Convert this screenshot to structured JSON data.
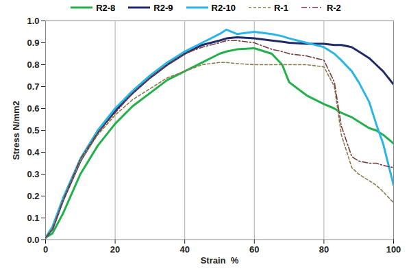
{
  "chart_data": {
    "type": "line",
    "x_label": "Strain  %",
    "y_label": "Stress N/mm2",
    "xlim": [
      0,
      100
    ],
    "xticks": [
      0,
      20,
      40,
      60,
      80,
      100
    ],
    "ylim": [
      0,
      1
    ],
    "yticks": [
      {
        "value": 0,
        "label": "0.0"
      },
      0.1,
      0.2,
      0.3,
      0.4,
      0.5,
      0.6,
      0.7,
      0.8,
      0.9,
      {
        "value": 1,
        "label": "1.0"
      }
    ],
    "grid": "x",
    "legend": "top",
    "x": [
      0,
      2,
      5,
      10,
      15,
      20,
      25,
      30,
      35,
      40,
      45,
      50,
      52,
      55,
      60,
      65,
      68,
      70,
      75,
      80,
      83,
      85,
      88,
      90,
      93,
      95,
      97,
      100
    ],
    "series": [
      {
        "name": "R2-8",
        "color": "#22b04b",
        "line_style": "solid",
        "values": [
          0.01,
          0.03,
          0.12,
          0.3,
          0.43,
          0.53,
          0.61,
          0.67,
          0.73,
          0.77,
          0.81,
          0.85,
          0.86,
          0.87,
          0.875,
          0.85,
          0.8,
          0.72,
          0.66,
          0.62,
          0.6,
          0.58,
          0.56,
          0.54,
          0.51,
          0.5,
          0.48,
          0.44
        ]
      },
      {
        "name": "R2-9",
        "color": "#1f2a6b",
        "line_style": "solid",
        "values": [
          0.01,
          0.05,
          0.18,
          0.36,
          0.49,
          0.59,
          0.67,
          0.74,
          0.8,
          0.85,
          0.89,
          0.91,
          0.92,
          0.925,
          0.92,
          0.91,
          0.905,
          0.9,
          0.895,
          0.895,
          0.89,
          0.89,
          0.88,
          0.86,
          0.83,
          0.8,
          0.77,
          0.71
        ]
      },
      {
        "name": "R2-10",
        "color": "#29b5e8",
        "line_style": "solid",
        "values": [
          0.01,
          0.06,
          0.19,
          0.37,
          0.5,
          0.6,
          0.68,
          0.75,
          0.81,
          0.86,
          0.9,
          0.94,
          0.96,
          0.94,
          0.95,
          0.94,
          0.93,
          0.92,
          0.9,
          0.88,
          0.85,
          0.82,
          0.77,
          0.72,
          0.63,
          0.53,
          0.44,
          0.25
        ]
      },
      {
        "name": "R-1",
        "color": "#8b7a4a",
        "line_style": "dashed",
        "values": [
          0.01,
          0.05,
          0.18,
          0.36,
          0.48,
          0.57,
          0.64,
          0.69,
          0.74,
          0.77,
          0.8,
          0.81,
          0.81,
          0.805,
          0.8,
          0.8,
          0.8,
          0.8,
          0.8,
          0.79,
          0.7,
          0.48,
          0.33,
          0.3,
          0.27,
          0.25,
          0.22,
          0.17
        ]
      },
      {
        "name": "R-2",
        "color": "#7a3a3a",
        "line_style": "dashdot",
        "values": [
          0.01,
          0.05,
          0.18,
          0.37,
          0.49,
          0.58,
          0.67,
          0.74,
          0.8,
          0.85,
          0.88,
          0.9,
          0.91,
          0.91,
          0.9,
          0.87,
          0.86,
          0.85,
          0.84,
          0.82,
          0.72,
          0.52,
          0.38,
          0.36,
          0.35,
          0.35,
          0.34,
          0.33
        ]
      }
    ]
  }
}
